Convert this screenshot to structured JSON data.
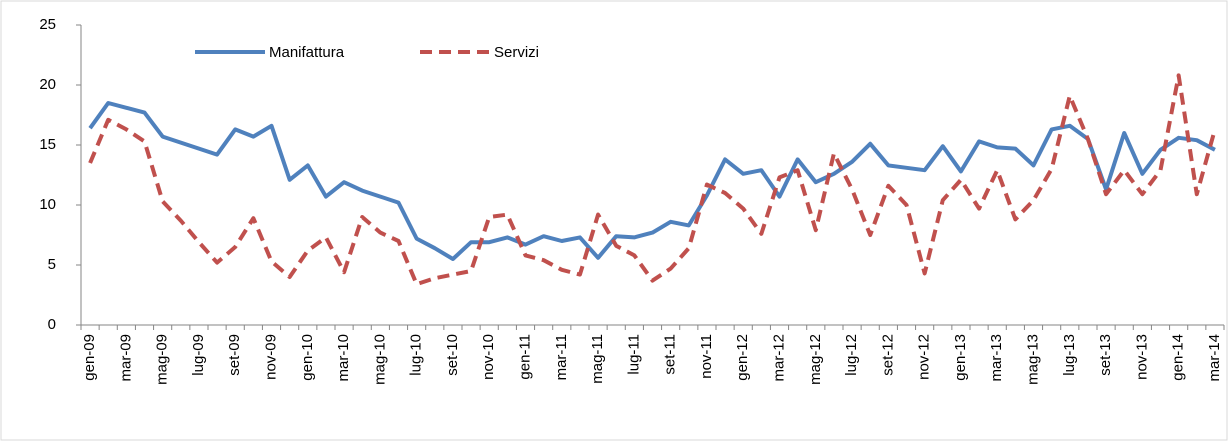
{
  "chart_data": {
    "type": "line",
    "categories": [
      "gen-09",
      null,
      "mar-09",
      null,
      "mag-09",
      null,
      "lug-09",
      null,
      "set-09",
      null,
      "nov-09",
      null,
      "gen-10",
      null,
      "mar-10",
      null,
      "mag-10",
      null,
      "lug-10",
      null,
      "set-10",
      null,
      "nov-10",
      null,
      "gen-11",
      null,
      "mar-11",
      null,
      "mag-11",
      null,
      "lug-11",
      null,
      "set-11",
      null,
      "nov-11",
      null,
      "gen-12",
      null,
      "mar-12",
      null,
      "mag-12",
      null,
      "lug-12",
      null,
      "set-12",
      null,
      "nov-12",
      null,
      "gen-13",
      null,
      "mar-13",
      null,
      "mag-13",
      null,
      "lug-13",
      null,
      "set-13",
      null,
      "nov-13",
      null,
      "gen-14",
      null,
      "mar-14"
    ],
    "series": [
      {
        "name": "Manifattura",
        "color": "#4f81bd",
        "dashed": false,
        "values": [
          16.4,
          18.5,
          18.1,
          17.7,
          15.7,
          15.2,
          14.7,
          14.2,
          16.3,
          15.7,
          16.6,
          12.1,
          13.3,
          10.7,
          11.9,
          11.2,
          10.7,
          10.2,
          7.2,
          6.4,
          5.5,
          6.9,
          6.9,
          7.3,
          6.7,
          7.4,
          7.0,
          7.3,
          5.6,
          7.4,
          7.3,
          7.7,
          8.6,
          8.3,
          10.8,
          13.8,
          12.6,
          12.9,
          10.7,
          13.8,
          11.9,
          12.6,
          13.6,
          15.1,
          13.3,
          13.1,
          12.9,
          14.9,
          12.8,
          15.3,
          14.8,
          14.7,
          13.3,
          16.3,
          16.6,
          15.5,
          11.3,
          16.0,
          12.6,
          14.6,
          15.6,
          15.4,
          14.6
        ]
      },
      {
        "name": "Servizi",
        "color": "#c0504d",
        "dashed": true,
        "values": [
          13.5,
          17.1,
          16.3,
          15.3,
          10.3,
          8.7,
          6.9,
          5.2,
          6.5,
          8.9,
          5.3,
          4.0,
          6.2,
          7.3,
          4.4,
          9.0,
          7.7,
          7.0,
          3.4,
          3.9,
          4.2,
          4.5,
          9.0,
          9.2,
          5.8,
          5.4,
          4.6,
          4.2,
          9.2,
          6.6,
          5.8,
          3.7,
          4.7,
          6.4,
          11.7,
          11.0,
          9.7,
          7.6,
          12.3,
          12.9,
          7.9,
          14.3,
          11.3,
          7.5,
          11.6,
          10.0,
          4.3,
          10.4,
          12.1,
          9.7,
          12.9,
          8.8,
          10.4,
          13.0,
          19.1,
          15.5,
          10.9,
          12.9,
          10.9,
          12.9,
          20.8,
          10.9,
          16.3
        ]
      }
    ],
    "ylim": [
      0,
      25
    ],
    "yticks": [
      0,
      5,
      10,
      15,
      20,
      25
    ],
    "grid": false,
    "legend": "top-left"
  }
}
